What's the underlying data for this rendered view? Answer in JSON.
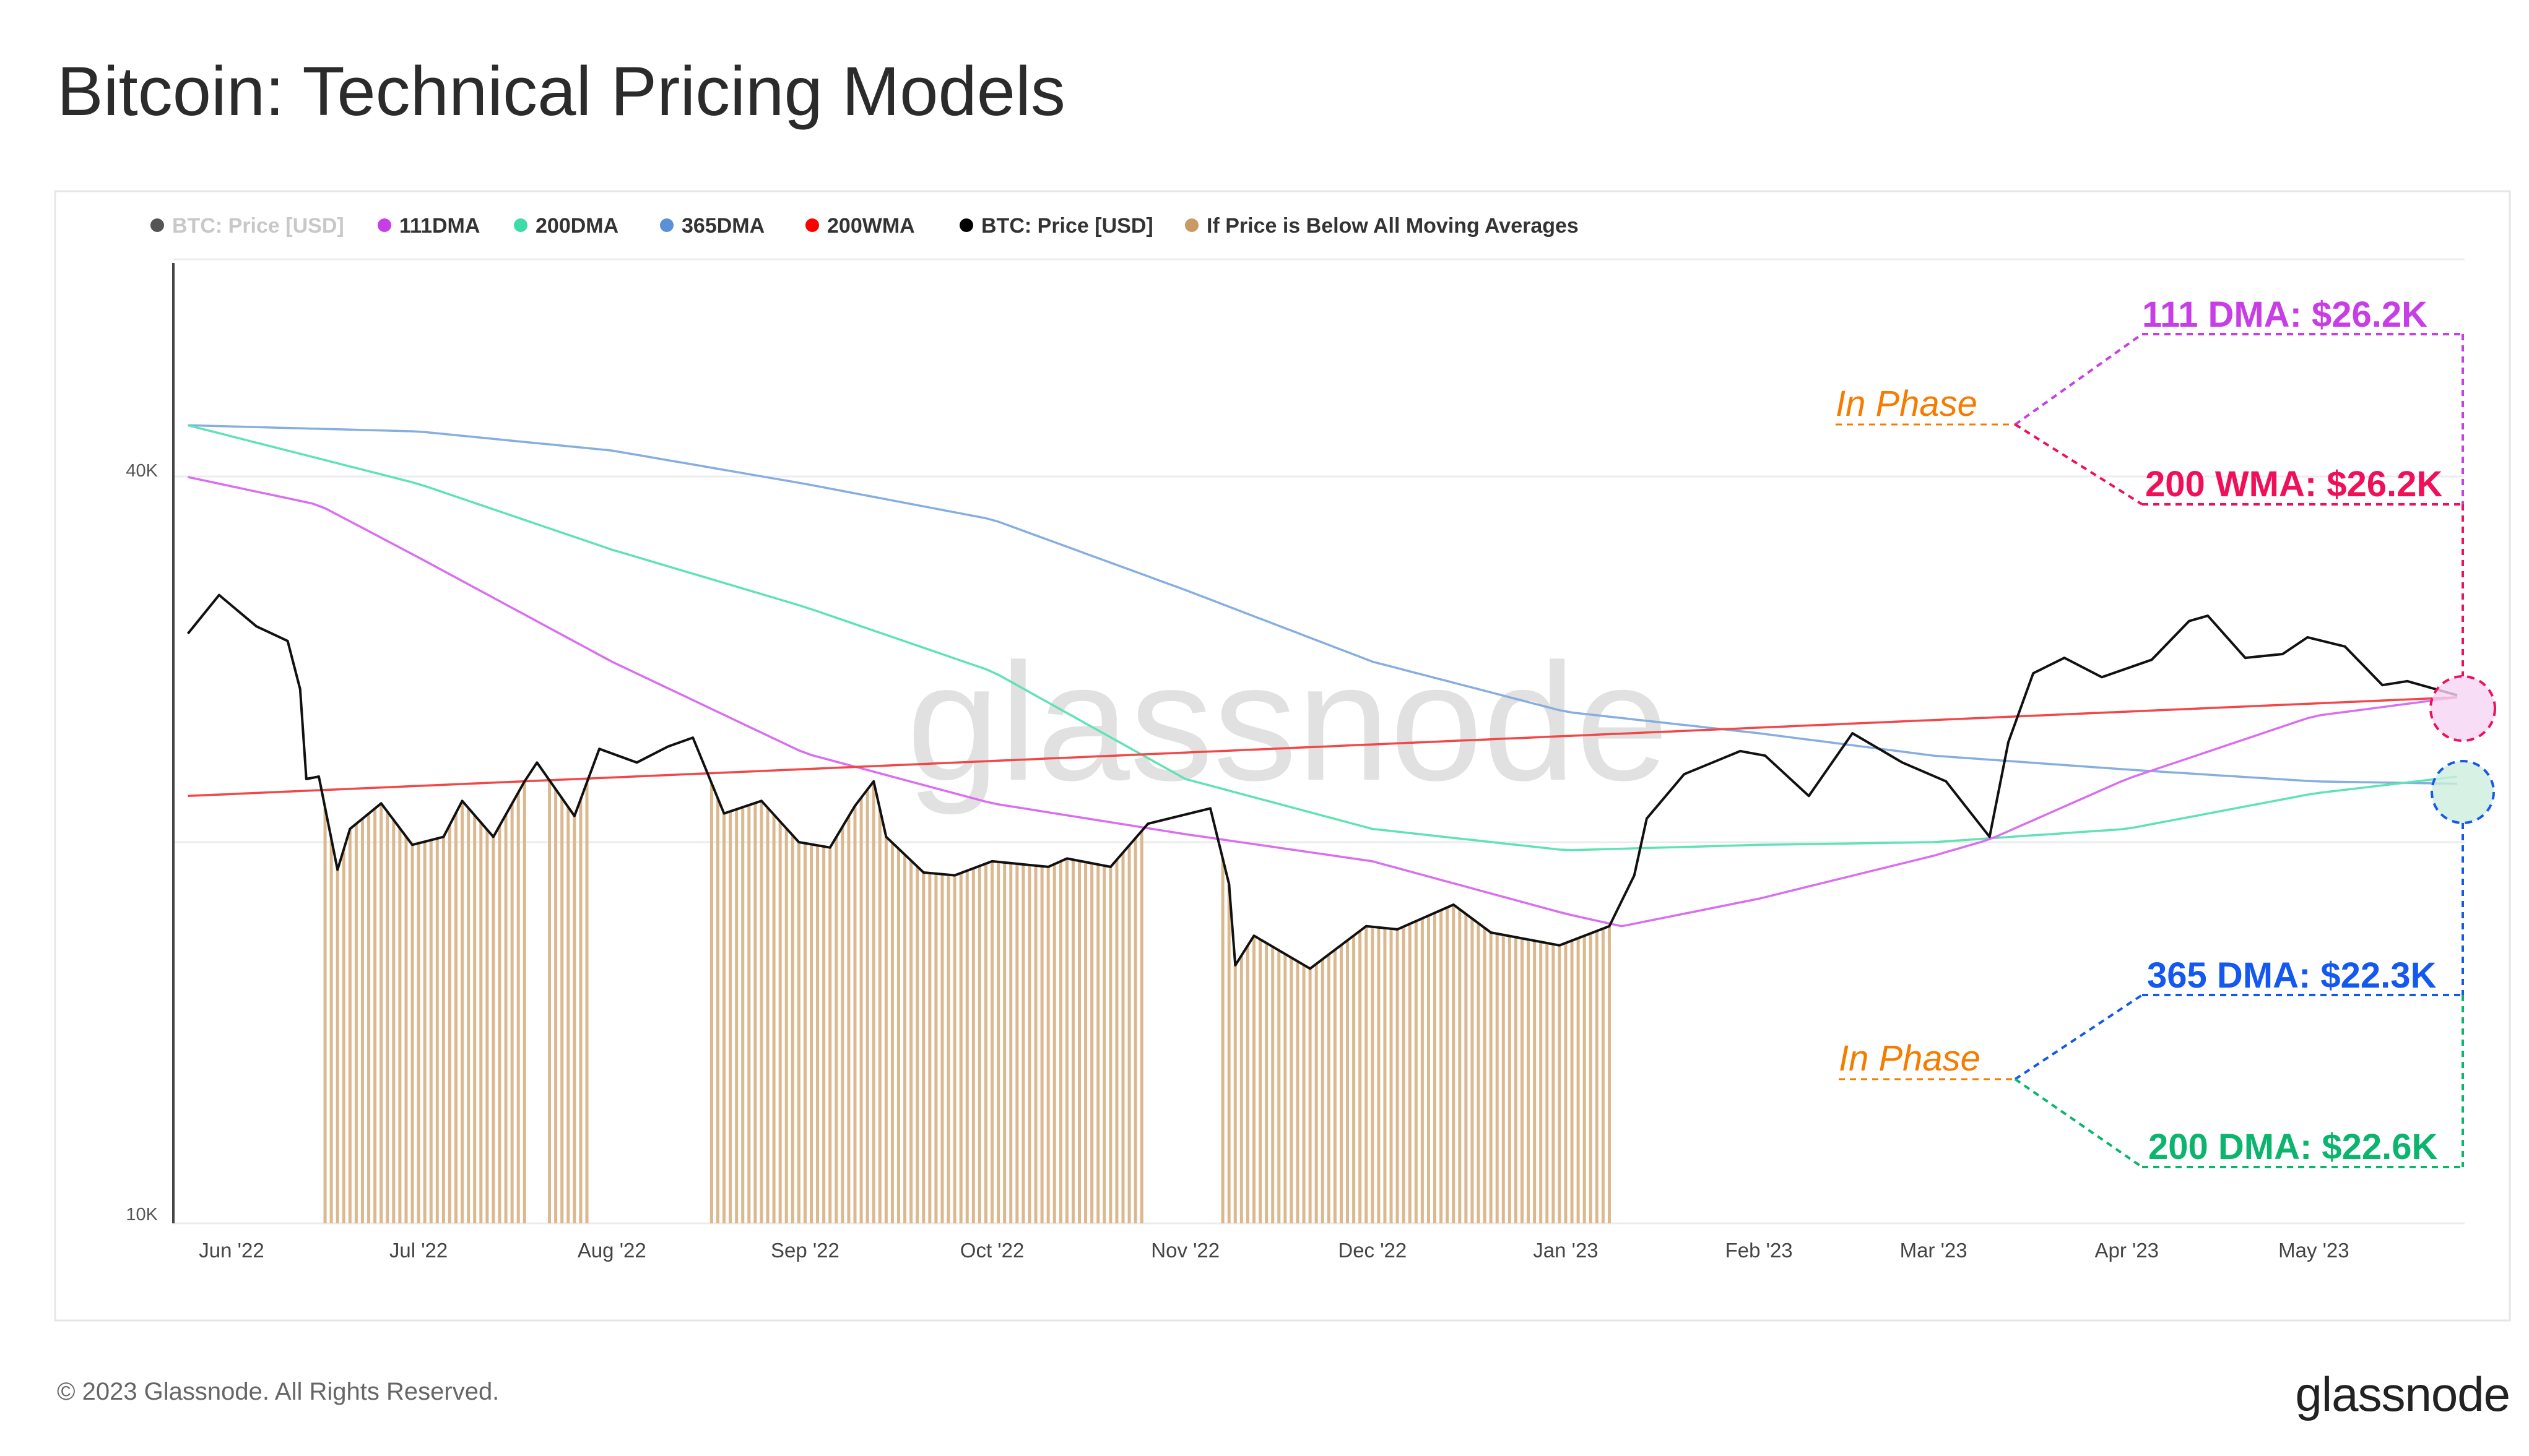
{
  "title": "Bitcoin: Technical Pricing Models",
  "footer": {
    "copyright": "© 2023 Glassnode. All Rights Reserved.",
    "logo": "glassnode"
  },
  "watermark": "glassnode",
  "chart_data": {
    "type": "line",
    "title": "Bitcoin: Technical Pricing Models",
    "yscale": "log",
    "ylim": [
      10000,
      55000
    ],
    "grid": true,
    "legend_placement": "top-left",
    "y_ticks": [
      {
        "value": 40000,
        "label": "40K"
      },
      {
        "value": 10000,
        "label": "10K"
      }
    ],
    "x_ticks": [
      {
        "date": "2022-06-01",
        "label": "Jun '22"
      },
      {
        "date": "2022-07-01",
        "label": "Jul '22"
      },
      {
        "date": "2022-08-01",
        "label": "Aug '22"
      },
      {
        "date": "2022-09-01",
        "label": "Sep '22"
      },
      {
        "date": "2022-10-01",
        "label": "Oct '22"
      },
      {
        "date": "2022-11-01",
        "label": "Nov '22"
      },
      {
        "date": "2022-12-01",
        "label": "Dec '22"
      },
      {
        "date": "2023-01-01",
        "label": "Jan '23"
      },
      {
        "date": "2023-02-01",
        "label": "Feb '23"
      },
      {
        "date": "2023-03-01",
        "label": "Mar '23"
      },
      {
        "date": "2023-04-01",
        "label": "Apr '23"
      },
      {
        "date": "2023-05-01",
        "label": "May '23"
      }
    ],
    "legend": [
      {
        "name": "BTC: Price [USD]",
        "color": "#555555",
        "muted": true
      },
      {
        "name": "111DMA",
        "color": "#c83ee6"
      },
      {
        "name": "200DMA",
        "color": "#3edba8"
      },
      {
        "name": "365DMA",
        "color": "#5b8fd6"
      },
      {
        "name": "200WMA",
        "color": "#ff0000"
      },
      {
        "name": "BTC: Price [USD]",
        "color": "#000000"
      },
      {
        "name": "If Price is Below All Moving Averages",
        "color": "#c89a64"
      }
    ],
    "series": [
      {
        "name": "BTC: Price [USD]",
        "color": "#111111",
        "points": [
          [
            "2022-05-25",
            29500
          ],
          [
            "2022-05-30",
            31700
          ],
          [
            "2022-06-05",
            29900
          ],
          [
            "2022-06-10",
            29100
          ],
          [
            "2022-06-12",
            26600
          ],
          [
            "2022-06-13",
            22500
          ],
          [
            "2022-06-15",
            22600
          ],
          [
            "2022-06-18",
            19000
          ],
          [
            "2022-06-20",
            20500
          ],
          [
            "2022-06-25",
            21500
          ],
          [
            "2022-06-30",
            19900
          ],
          [
            "2022-07-05",
            20200
          ],
          [
            "2022-07-08",
            21600
          ],
          [
            "2022-07-13",
            20200
          ],
          [
            "2022-07-18",
            22400
          ],
          [
            "2022-07-20",
            23200
          ],
          [
            "2022-07-26",
            21000
          ],
          [
            "2022-07-30",
            23800
          ],
          [
            "2022-08-05",
            23200
          ],
          [
            "2022-08-10",
            23900
          ],
          [
            "2022-08-14",
            24300
          ],
          [
            "2022-08-19",
            21100
          ],
          [
            "2022-08-25",
            21600
          ],
          [
            "2022-08-31",
            20000
          ],
          [
            "2022-09-05",
            19800
          ],
          [
            "2022-09-09",
            21400
          ],
          [
            "2022-09-12",
            22400
          ],
          [
            "2022-09-14",
            20200
          ],
          [
            "2022-09-20",
            18900
          ],
          [
            "2022-09-25",
            18800
          ],
          [
            "2022-10-01",
            19300
          ],
          [
            "2022-10-10",
            19100
          ],
          [
            "2022-10-13",
            19400
          ],
          [
            "2022-10-20",
            19100
          ],
          [
            "2022-10-26",
            20700
          ],
          [
            "2022-11-05",
            21300
          ],
          [
            "2022-11-08",
            18500
          ],
          [
            "2022-11-09",
            15900
          ],
          [
            "2022-11-12",
            16800
          ],
          [
            "2022-11-21",
            15800
          ],
          [
            "2022-11-30",
            17100
          ],
          [
            "2022-12-05",
            17000
          ],
          [
            "2022-12-14",
            17800
          ],
          [
            "2022-12-20",
            16900
          ],
          [
            "2022-12-31",
            16500
          ],
          [
            "2023-01-08",
            17100
          ],
          [
            "2023-01-12",
            18800
          ],
          [
            "2023-01-14",
            20900
          ],
          [
            "2023-01-20",
            22700
          ],
          [
            "2023-01-29",
            23700
          ],
          [
            "2023-02-02",
            23500
          ],
          [
            "2023-02-09",
            21800
          ],
          [
            "2023-02-16",
            24500
          ],
          [
            "2023-02-24",
            23200
          ],
          [
            "2023-03-03",
            22400
          ],
          [
            "2023-03-10",
            20200
          ],
          [
            "2023-03-13",
            24100
          ],
          [
            "2023-03-17",
            27400
          ],
          [
            "2023-03-22",
            28200
          ],
          [
            "2023-03-28",
            27200
          ],
          [
            "2023-04-05",
            28100
          ],
          [
            "2023-04-11",
            30200
          ],
          [
            "2023-04-14",
            30500
          ],
          [
            "2023-04-20",
            28200
          ],
          [
            "2023-04-26",
            28400
          ],
          [
            "2023-04-30",
            29300
          ],
          [
            "2023-05-06",
            28800
          ],
          [
            "2023-05-12",
            26800
          ],
          [
            "2023-05-16",
            27000
          ],
          [
            "2023-05-24",
            26300
          ]
        ]
      },
      {
        "name": "111DMA",
        "color": "#d96ef0",
        "points": [
          [
            "2022-05-25",
            39500
          ],
          [
            "2022-06-15",
            37500
          ],
          [
            "2022-07-01",
            34000
          ],
          [
            "2022-08-01",
            28000
          ],
          [
            "2022-09-01",
            23600
          ],
          [
            "2022-10-01",
            21500
          ],
          [
            "2022-11-01",
            20300
          ],
          [
            "2022-12-01",
            19300
          ],
          [
            "2023-01-01",
            17500
          ],
          [
            "2023-01-10",
            17100
          ],
          [
            "2023-02-01",
            18000
          ],
          [
            "2023-03-01",
            19500
          ],
          [
            "2023-03-10",
            20100
          ],
          [
            "2023-04-01",
            22500
          ],
          [
            "2023-05-01",
            25300
          ],
          [
            "2023-05-24",
            26200
          ]
        ]
      },
      {
        "name": "200DMA",
        "color": "#5fe3b3",
        "points": [
          [
            "2022-05-25",
            43500
          ],
          [
            "2022-07-01",
            39000
          ],
          [
            "2022-08-01",
            34500
          ],
          [
            "2022-09-01",
            31000
          ],
          [
            "2022-10-01",
            27500
          ],
          [
            "2022-11-01",
            22500
          ],
          [
            "2022-12-01",
            20500
          ],
          [
            "2023-01-01",
            19700
          ],
          [
            "2023-02-01",
            19900
          ],
          [
            "2023-03-01",
            20000
          ],
          [
            "2023-04-01",
            20500
          ],
          [
            "2023-05-01",
            21900
          ],
          [
            "2023-05-24",
            22600
          ]
        ]
      },
      {
        "name": "365DMA",
        "color": "#86aee0",
        "points": [
          [
            "2022-05-25",
            43500
          ],
          [
            "2022-07-01",
            43000
          ],
          [
            "2022-08-01",
            41500
          ],
          [
            "2022-09-01",
            39000
          ],
          [
            "2022-10-01",
            36500
          ],
          [
            "2022-11-01",
            32000
          ],
          [
            "2022-12-01",
            28000
          ],
          [
            "2023-01-01",
            25500
          ],
          [
            "2023-02-01",
            24500
          ],
          [
            "2023-03-01",
            23500
          ],
          [
            "2023-04-01",
            22900
          ],
          [
            "2023-05-01",
            22400
          ],
          [
            "2023-05-24",
            22300
          ]
        ]
      },
      {
        "name": "200WMA",
        "color": "#f04848",
        "points": [
          [
            "2022-05-25",
            21800
          ],
          [
            "2023-05-24",
            26200
          ]
        ]
      }
    ],
    "annotations": [
      {
        "text": "111 DMA: $26.2K",
        "color": "#c83ee6"
      },
      {
        "text": "200 WMA: $26.2K",
        "color": "#f0105a"
      },
      {
        "text": "365 DMA: $22.3K",
        "color": "#1558f0"
      },
      {
        "text": "200 DMA: $22.6K",
        "color": "#0cb56e"
      },
      {
        "text": "In Phase",
        "color": "#f57c00"
      },
      {
        "text": "In Phase",
        "color": "#f57c00"
      }
    ]
  }
}
